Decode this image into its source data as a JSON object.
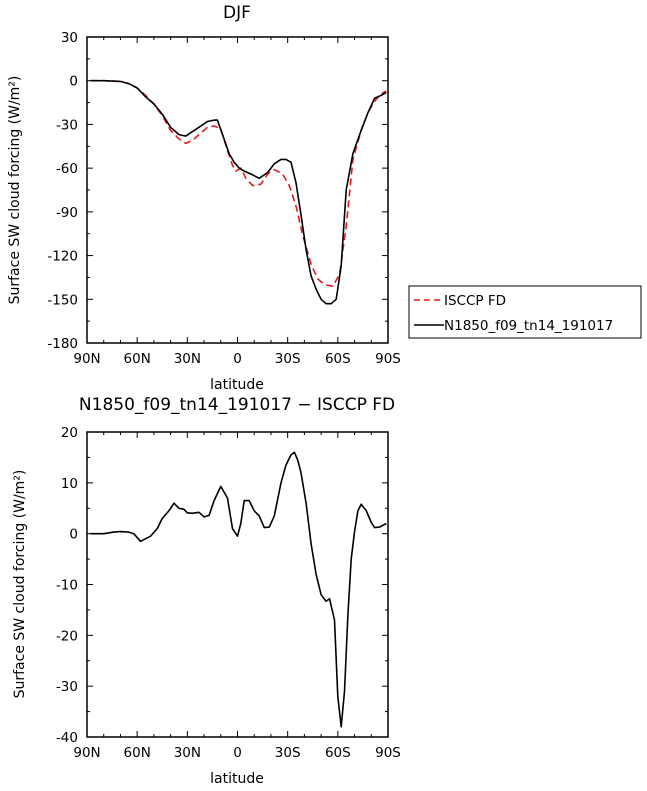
{
  "chart_data": [
    {
      "type": "line",
      "title": "DJF",
      "xlabel": "latitude",
      "ylabel": "Surface SW cloud forcing (W/m²)",
      "xlim": [
        -90,
        90
      ],
      "ylim": [
        -180,
        30
      ],
      "xticks": [
        -90,
        -60,
        -30,
        0,
        30,
        60,
        90
      ],
      "xticklabels": [
        "90N",
        "60N",
        "30N",
        "0",
        "30S",
        "60S",
        "90S"
      ],
      "yticks": [
        30,
        0,
        -30,
        -60,
        -90,
        -120,
        -150,
        -180
      ],
      "yticklabels": [
        "30",
        "0",
        "-30",
        "-60",
        "-90",
        "-120",
        "-150",
        "-180"
      ],
      "legend_position": "outside-right",
      "series": [
        {
          "name": "ISCCP FD",
          "color": "#e31a1c",
          "dashed": true,
          "x": [
            -88,
            -80,
            -70,
            -65,
            -60,
            -55,
            -50,
            -45,
            -40,
            -35,
            -31,
            -27,
            -23,
            -18,
            -14,
            -10,
            -6,
            -3,
            -1,
            2,
            5,
            9,
            14,
            18,
            22,
            27,
            31,
            35,
            39,
            44,
            48,
            52,
            57,
            61,
            65,
            69,
            74,
            78,
            82,
            86,
            89
          ],
          "y": [
            0,
            0,
            -0.5,
            -2,
            -5,
            -10,
            -16,
            -24,
            -34,
            -40,
            -43,
            -41,
            -37,
            -32,
            -31,
            -33,
            -48,
            -58,
            -62,
            -60,
            -67,
            -72,
            -71,
            -64,
            -61,
            -64,
            -72,
            -86,
            -106,
            -126,
            -136,
            -140,
            -141,
            -133,
            -100,
            -54,
            -34,
            -22,
            -14,
            -9,
            -7
          ]
        },
        {
          "name": "N1850_f09_tn14_191017",
          "color": "#000000",
          "dashed": false,
          "x": [
            -88,
            -80,
            -70,
            -65,
            -60,
            -55,
            -50,
            -45,
            -40,
            -35,
            -31,
            -27,
            -23,
            -18,
            -14,
            -12,
            -8,
            -5,
            -2,
            1,
            4,
            8,
            13,
            18,
            22,
            26,
            29,
            32,
            35,
            38,
            41,
            44,
            47,
            50,
            53,
            56,
            59,
            62,
            65,
            69,
            74,
            78,
            82,
            86,
            89
          ],
          "y": [
            0,
            0,
            -0.5,
            -2,
            -5,
            -11,
            -16,
            -23,
            -32,
            -37,
            -38,
            -35,
            -32,
            -28,
            -27,
            -27,
            -40,
            -50,
            -56,
            -60,
            -62,
            -64,
            -67,
            -63,
            -57,
            -54,
            -54,
            -56,
            -70,
            -92,
            -116,
            -134,
            -143,
            -150,
            -153,
            -153,
            -150,
            -127,
            -75,
            -50,
            -34,
            -22,
            -12,
            -10,
            -8
          ]
        }
      ]
    },
    {
      "type": "line",
      "title": "N1850_f09_tn14_191017 − ISCCP FD",
      "xlabel": "latitude",
      "ylabel": "Surface SW cloud forcing (W/m²)",
      "xlim": [
        -90,
        90
      ],
      "ylim": [
        -40,
        20
      ],
      "xticks": [
        -90,
        -60,
        -30,
        0,
        30,
        60,
        90
      ],
      "xticklabels": [
        "90N",
        "60N",
        "30N",
        "0",
        "30S",
        "60S",
        "90S"
      ],
      "yticks": [
        20,
        10,
        0,
        -10,
        -20,
        -30,
        -40
      ],
      "yticklabels": [
        "20",
        "10",
        "0",
        "-10",
        "-20",
        "-30",
        "-40"
      ],
      "series": [
        {
          "color": "#000000",
          "dashed": false,
          "x": [
            -88,
            -80,
            -74,
            -70,
            -65,
            -62,
            -58,
            -55,
            -52,
            -48,
            -45,
            -41,
            -38,
            -35,
            -32,
            -30,
            -27,
            -23,
            -20,
            -17,
            -14,
            -10,
            -6,
            -3,
            0,
            2,
            4,
            7,
            10,
            13,
            16,
            19,
            22,
            26,
            29,
            32,
            34,
            36,
            38,
            41,
            44,
            47,
            50,
            53,
            55,
            58,
            60,
            62,
            64,
            66,
            68,
            70,
            72,
            74,
            77,
            80,
            82,
            85,
            89
          ],
          "y": [
            0,
            0,
            0.3,
            0.4,
            0.3,
            0,
            -1.5,
            -1,
            -0.5,
            1,
            3,
            4.5,
            6,
            5,
            4.8,
            4.1,
            4,
            4.2,
            3.3,
            3.6,
            6.5,
            9.3,
            7,
            1,
            -0.5,
            2,
            6.5,
            6.5,
            4.5,
            3.5,
            1.2,
            1.3,
            3.5,
            10,
            13.5,
            15.5,
            16,
            14.5,
            12,
            6,
            -2,
            -8,
            -12,
            -13.3,
            -12.8,
            -17,
            -32,
            -38,
            -31,
            -16,
            -5,
            0.5,
            4.5,
            5.8,
            4.5,
            2.2,
            1.2,
            1.3,
            2
          ]
        }
      ]
    }
  ]
}
